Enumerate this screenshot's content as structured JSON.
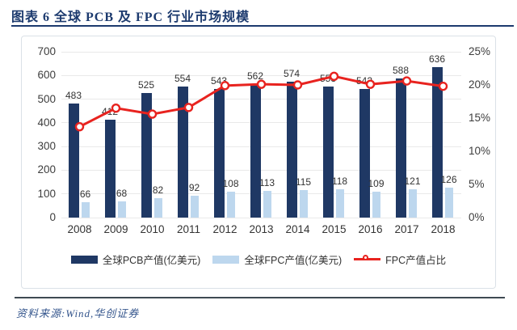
{
  "header": {
    "title": "图表 6  全球 PCB 及 FPC 行业市场规模"
  },
  "footer": {
    "source_label": "资料来源:Wind,华创证券"
  },
  "colors": {
    "title_navy": "#1c3a6e",
    "pcb_bar_navy": "#1f3864",
    "fpc_bar_lightblue": "#bdd7ee",
    "line_red": "#e8231f",
    "gridline": "#e9e9e9",
    "axis_text": "#3d3d3d",
    "card_border": "#dbe1e7",
    "footer_rule": "#3f4a52",
    "footer_text": "#35568d"
  },
  "chart_data": {
    "type": "bar+line combo",
    "title": "图表 6 全球 PCB 及 FPC 行业市场规模",
    "categories": [
      "2008",
      "2009",
      "2010",
      "2011",
      "2012",
      "2013",
      "2014",
      "2015",
      "2016",
      "2017",
      "2018"
    ],
    "series": [
      {
        "name": "全球PCB产值(亿美元)",
        "type": "bar",
        "axis": "left",
        "color": "#1f3864",
        "values": [
          483,
          412,
          525,
          554,
          543,
          562,
          574,
          553,
          542,
          588,
          636
        ]
      },
      {
        "name": "全球FPC产值(亿美元)",
        "type": "bar",
        "axis": "left",
        "color": "#bdd7ee",
        "values": [
          66,
          68,
          82,
          92,
          108,
          113,
          115,
          118,
          109,
          121,
          126
        ]
      },
      {
        "name": "FPC产值占比",
        "type": "line",
        "axis": "right",
        "unit": "%",
        "color": "#e8231f",
        "values": [
          13.7,
          16.5,
          15.6,
          16.6,
          19.9,
          20.1,
          20.0,
          21.3,
          20.1,
          20.6,
          19.8
        ]
      }
    ],
    "left_axis": {
      "min": 0,
      "max": 700,
      "step": 100,
      "ticks": [
        "700",
        "600",
        "500",
        "400",
        "300",
        "200",
        "100",
        "0"
      ]
    },
    "right_axis": {
      "min": 0,
      "max": 25,
      "step": 5,
      "ticks": [
        "25%",
        "20%",
        "15%",
        "10%",
        "5%",
        "0%"
      ]
    },
    "grid": "horizontal",
    "data_labels": "shown above bars",
    "legend_position": "bottom",
    "source": "资料来源:Wind,华创证券"
  }
}
